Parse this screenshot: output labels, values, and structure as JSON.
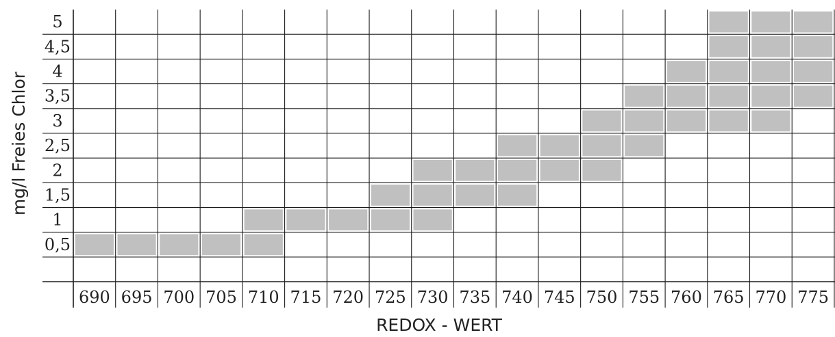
{
  "chart_data": {
    "type": "heatmap",
    "title": "",
    "xlabel": "REDOX - WERT",
    "ylabel": "mg/l Freies Chlor",
    "x_categories": [
      "690",
      "695",
      "700",
      "705",
      "710",
      "715",
      "720",
      "725",
      "730",
      "735",
      "740",
      "745",
      "750",
      "755",
      "760",
      "765",
      "770",
      "775"
    ],
    "y_categories": [
      "0,5",
      "1",
      "1,5",
      "2",
      "2,5",
      "3",
      "3,5",
      "4",
      "4,5",
      "5"
    ],
    "grid": true,
    "cell_color": "#c0c0c0",
    "cell_border_color": "#ffffff",
    "grid_color": "#1a1a1a",
    "filled_cells": {
      "690": [
        "0,5"
      ],
      "695": [
        "0,5"
      ],
      "700": [
        "0,5"
      ],
      "705": [
        "0,5"
      ],
      "710": [
        "0,5",
        "1"
      ],
      "715": [
        "1"
      ],
      "720": [
        "1"
      ],
      "725": [
        "1",
        "1,5"
      ],
      "730": [
        "1",
        "1,5",
        "2"
      ],
      "735": [
        "1,5",
        "2"
      ],
      "740": [
        "1,5",
        "2",
        "2,5"
      ],
      "745": [
        "2",
        "2,5"
      ],
      "750": [
        "2",
        "2,5",
        "3"
      ],
      "755": [
        "2,5",
        "3",
        "3,5"
      ],
      "760": [
        "3",
        "3,5",
        "4"
      ],
      "765": [
        "3",
        "3,5",
        "4",
        "4,5",
        "5"
      ],
      "770": [
        "3",
        "3,5",
        "4",
        "4,5",
        "5"
      ],
      "775": [
        "3,5",
        "4",
        "4,5",
        "5"
      ]
    }
  }
}
